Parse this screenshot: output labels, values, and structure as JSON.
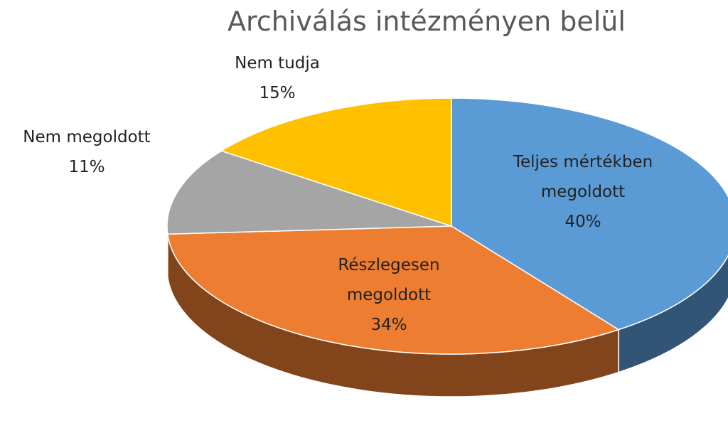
{
  "chart_data": {
    "type": "pie",
    "title": "Archiválás intézményen belül",
    "categories": [
      "Teljes mértékben megoldott",
      "Részlegesen megoldott",
      "Nem megoldott",
      "Nem tudja"
    ],
    "values": [
      40,
      34,
      11,
      15
    ],
    "value_labels": [
      "40%",
      "34%",
      "11%",
      "15%"
    ],
    "colors": [
      "#5b9bd5",
      "#ed7d31",
      "#a5a5a5",
      "#ffc000"
    ]
  }
}
